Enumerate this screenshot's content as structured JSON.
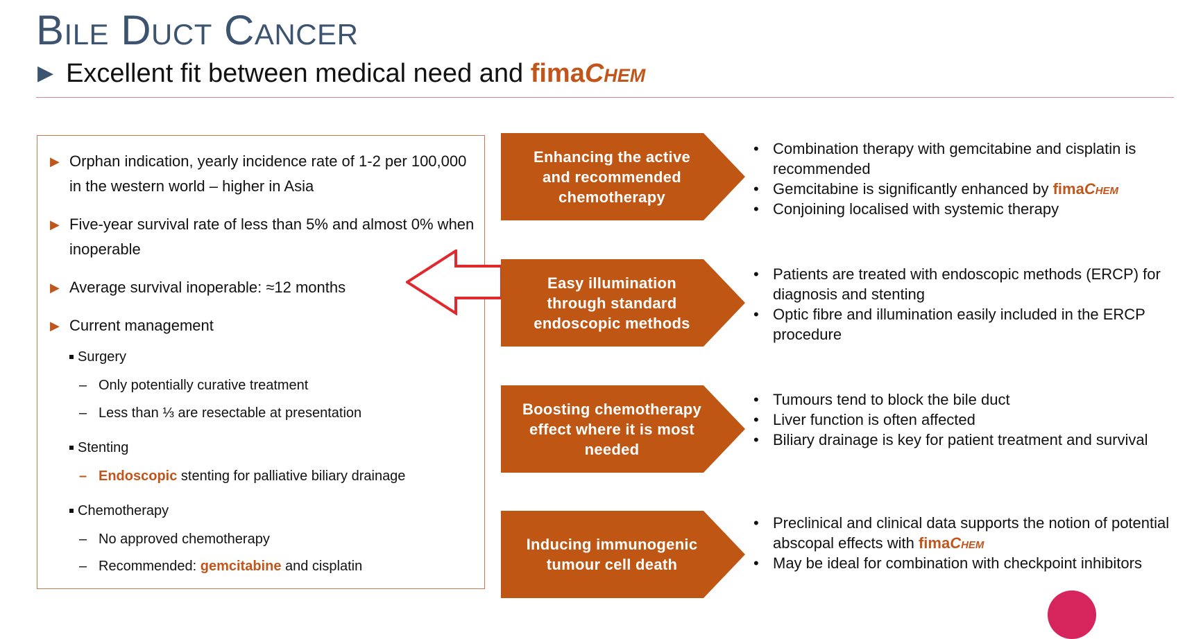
{
  "header": {
    "title": "Bile Duct Cancer",
    "subtitle_prefix": "Excellent fit between medical need and ",
    "brand_fima": "fima",
    "brand_chem": "Chem"
  },
  "left_panel": {
    "items": [
      "Orphan indication, yearly incidence rate of 1-2 per 100,000 in the western world – higher in Asia",
      "Five-year survival rate of less than 5% and almost 0% when inoperable",
      "Average survival inoperable: ≈12 months",
      "Current management"
    ],
    "surgery": {
      "label": "Surgery",
      "points": [
        "Only potentially curative treatment",
        "Less than ⅓ are resectable at presentation"
      ]
    },
    "stenting": {
      "label": "Stenting",
      "highlight": "Endoscopic",
      "rest": " stenting for palliative biliary drainage"
    },
    "chemotherapy": {
      "label": "Chemotherapy",
      "point1": "No approved chemotherapy",
      "point2_prefix": "Recommended: ",
      "point2_highlight": "gemcitabine",
      "point2_suffix": " and cisplatin"
    }
  },
  "benefits": [
    {
      "label": "Enhancing the active\nand recommended\nchemotherapy",
      "bullets": [
        "Combination therapy with gemcitabine and cisplatin is recommended",
        "Gemcitabine is significantly enhanced by ",
        "Conjoining localised with systemic therapy"
      ]
    },
    {
      "label": "Easy illumination\nthrough standard\nendoscopic methods",
      "bullets": [
        "Patients are treated with endoscopic methods (ERCP) for diagnosis and stenting",
        "Optic fibre and illumination easily included in the ERCP procedure"
      ]
    },
    {
      "label": "Boosting chemotherapy\neffect where it is most\nneeded",
      "bullets": [
        "Tumours tend to block the bile duct",
        "Liver function is often affected",
        "Biliary drainage is key for patient treatment and survival"
      ]
    },
    {
      "label": "Inducing immunogenic\ntumour cell death",
      "bullets": [
        "Preclinical and clinical data supports the notion of potential abscopal effects with ",
        "May be ideal for combination with checkpoint inhibitors"
      ]
    }
  ],
  "colors": {
    "accent": "#c0561b",
    "title": "#3d5470",
    "rule": "#d8848e",
    "arrow_outline": "#e0282d"
  }
}
